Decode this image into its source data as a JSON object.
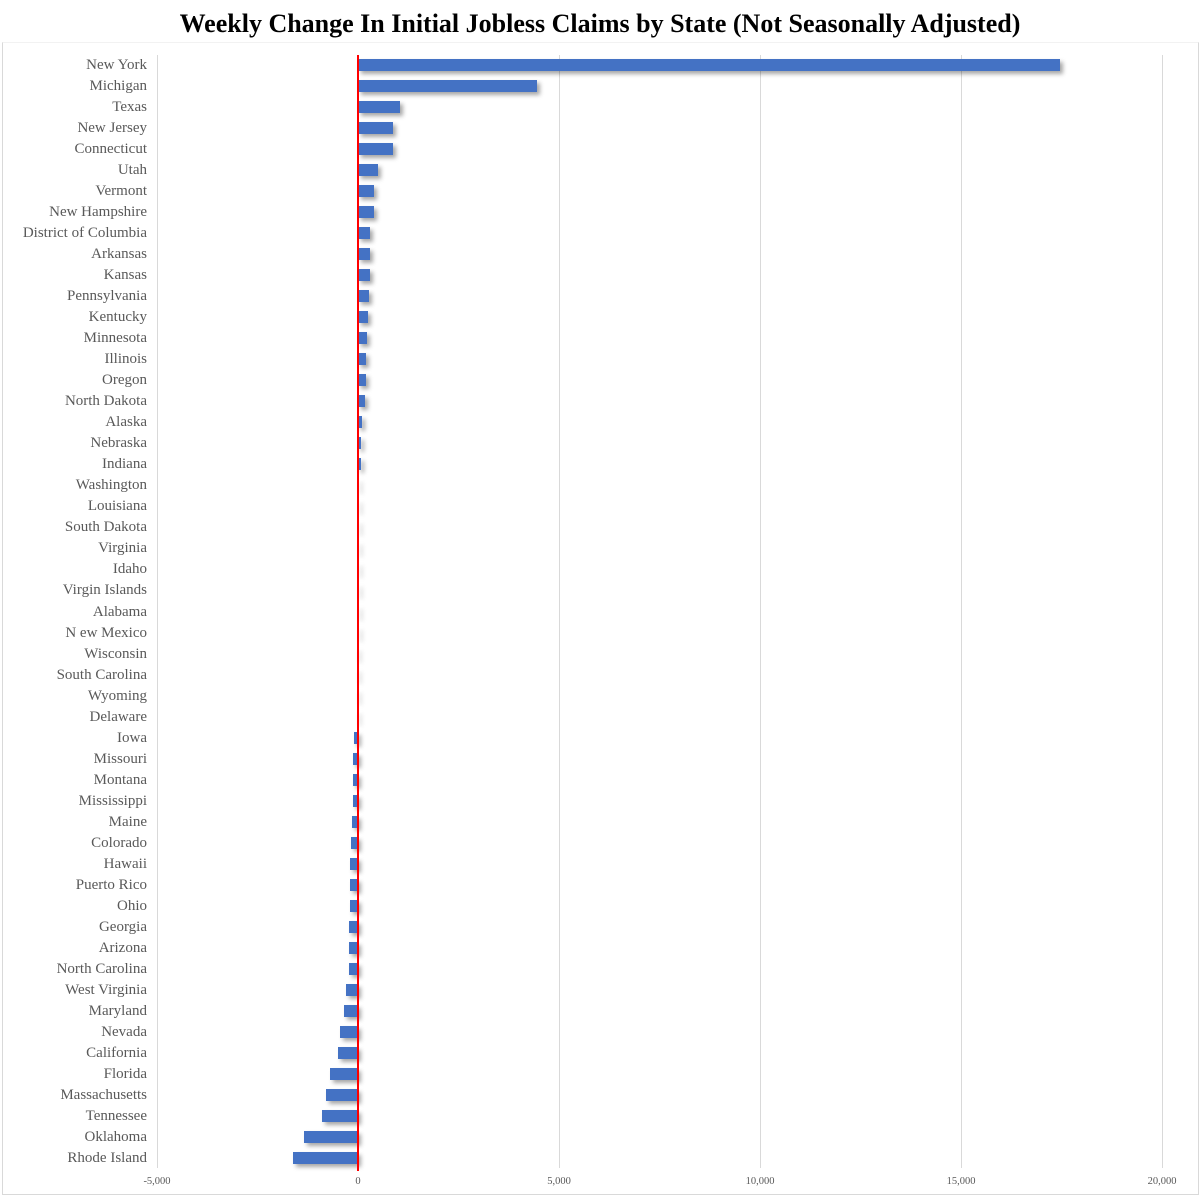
{
  "title": "Weekly Change In Initial Jobless Claims by State (Not Seasonally Adjusted)",
  "chart_data": {
    "type": "bar",
    "orientation": "horizontal",
    "title": "Weekly Change In Initial Jobless Claims by State (Not Seasonally Adjusted)",
    "xlabel": "",
    "ylabel": "",
    "xlim": [
      -5000,
      20000
    ],
    "x_tick_labels": [
      "-5,000",
      "0",
      "5,000",
      "10,000",
      "15,000",
      "20,000"
    ],
    "x_tick_values": [
      -5000,
      0,
      5000,
      10000,
      15000,
      20000
    ],
    "grid": "vertical-gridlines-on",
    "legend": "none",
    "zero_reference_line": true,
    "categories": [
      "New York",
      "Michigan",
      "Texas",
      "New Jersey",
      "Connecticut",
      "Utah",
      "Vermont",
      "New Hampshire",
      "District of Columbia",
      "Arkansas",
      "Kansas",
      "Pennsylvania",
      "Kentucky",
      "Minnesota",
      "Illinois",
      "Oregon",
      "North Dakota",
      "Alaska",
      "Nebraska",
      "Indiana",
      "Washington",
      "Louisiana",
      "South Dakota",
      "Virginia",
      "Idaho",
      "Virgin Islands",
      "Alabama",
      "N ew Mexico",
      "Wisconsin",
      "South Carolina",
      "Wyoming",
      "Delaware",
      "Iowa",
      "Missouri",
      "Montana",
      "Mississippi",
      "Maine",
      "Colorado",
      "Hawaii",
      "Puerto Rico",
      "Ohio",
      "Georgia",
      "Arizona",
      "North Carolina",
      "West Virginia",
      "Maryland",
      "Nevada",
      "California",
      "Florida",
      "Massachusetts",
      "Tennessee",
      "Oklahoma",
      "Rhode Island"
    ],
    "values": [
      17470,
      4450,
      1050,
      880,
      870,
      490,
      410,
      400,
      310,
      300,
      290,
      285,
      250,
      225,
      205,
      200,
      175,
      90,
      85,
      80,
      25,
      15,
      10,
      10,
      5,
      5,
      0,
      0,
      -5,
      -10,
      -15,
      -20,
      -110,
      -120,
      -125,
      -130,
      -140,
      -165,
      -195,
      -205,
      -210,
      -215,
      -220,
      -230,
      -310,
      -350,
      -450,
      -495,
      -705,
      -805,
      -905,
      -1345,
      -1610
    ],
    "colors": {
      "bar": "#4472C4",
      "zero_line": "#FF0000",
      "gridline": "#D9D9D9",
      "axis_text": "#595959",
      "title_text": "#000000",
      "border": "#D9D9D9"
    }
  }
}
